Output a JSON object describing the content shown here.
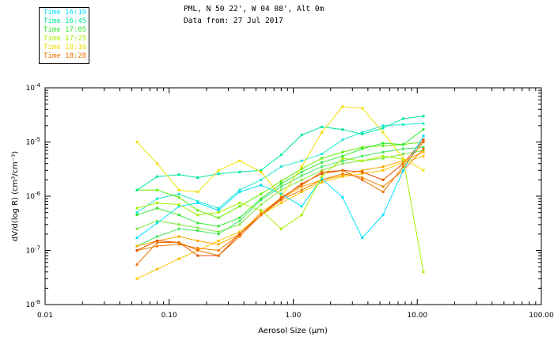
{
  "header": {
    "line1": "PML, N 50 22', W 04 08', Alt 0m",
    "line2": "Data from: 27 Jul 2017"
  },
  "chart_data": {
    "type": "line",
    "xscale": "log",
    "yscale": "log",
    "xlim": [
      0.01,
      100.0
    ],
    "ylim": [
      1e-08,
      0.0001
    ],
    "xlabel": "Aerosol Size (µm)",
    "ylabel": "dV/d(log R) (cm³/cm⁻³)",
    "xticks": [
      {
        "value": 0.01,
        "label": "0.01"
      },
      {
        "value": 0.1,
        "label": "0.10"
      },
      {
        "value": 1,
        "label": "1.00"
      },
      {
        "value": 10,
        "label": "10.00"
      },
      {
        "value": 100,
        "label": "100.00"
      }
    ],
    "yticks": [
      {
        "value": 1e-08,
        "base": "10",
        "exp": "-8"
      },
      {
        "value": 1e-07,
        "base": "10",
        "exp": "-7"
      },
      {
        "value": 1e-06,
        "base": "10",
        "exp": "-6"
      },
      {
        "value": 1e-05,
        "base": "10",
        "exp": "-5"
      },
      {
        "value": 0.0001,
        "base": "10",
        "exp": "-4"
      }
    ],
    "x": [
      0.055,
      0.08,
      0.12,
      0.17,
      0.25,
      0.37,
      0.55,
      0.8,
      1.17,
      1.7,
      2.5,
      3.6,
      5.3,
      7.7,
      11.2
    ],
    "series": [
      {
        "name": "Time 16:19",
        "color": "#00e0ff",
        "values": [
          1.7e-07,
          3.2e-07,
          6.5e-07,
          7.5e-07,
          5.5e-07,
          1.2e-06,
          1.6e-06,
          1.1e-06,
          6.5e-07,
          2.1e-06,
          9.5e-07,
          1.7e-07,
          4.5e-07,
          3e-06,
          1.3e-05
        ]
      },
      {
        "name": "Time 16:45",
        "color": "#00e8a0",
        "values": [
          1.3e-06,
          2.3e-06,
          2.5e-06,
          2.2e-06,
          2.6e-06,
          2.8e-06,
          3e-06,
          5.8e-06,
          1.35e-05,
          1.9e-05,
          1.7e-05,
          1.4e-05,
          1.8e-05,
          2.7e-05,
          3e-05
        ]
      },
      {
        "name": "Time 17:05",
        "color": "#30e830",
        "values": [
          4.5e-07,
          6e-07,
          4.5e-07,
          3.2e-07,
          2.8e-07,
          4e-07,
          9e-07,
          1.7e-06,
          2.8e-06,
          4.2e-06,
          5.5e-06,
          7.5e-06,
          9.5e-06,
          9e-06,
          1.7e-05
        ]
      },
      {
        "name": "Time 17:25",
        "color": "#a8f000",
        "values": [
          6e-07,
          7.5e-07,
          7e-07,
          4.5e-07,
          5e-07,
          7.5e-07,
          5.5e-07,
          2.5e-07,
          4.5e-07,
          2.3e-06,
          5e-06,
          4.5e-06,
          5.5e-06,
          4.8e-06,
          4e-08
        ]
      },
      {
        "name": "Time 18:16",
        "color": "#f0e000",
        "values": [
          1e-05,
          4e-06,
          1.3e-06,
          1.2e-06,
          3e-06,
          4.5e-06,
          2.8e-06,
          1e-06,
          3.5e-06,
          1.5e-05,
          4.5e-05,
          4.2e-05,
          1.5e-05,
          5e-06,
          3e-06
        ]
      },
      {
        "name": "Time 18:28",
        "color": "#f07000",
        "values": [
          5.5e-08,
          1.4e-07,
          1.4e-07,
          1e-07,
          8e-08,
          1.8e-07,
          4.5e-07,
          9.5e-07,
          1.6e-06,
          2.8e-06,
          3e-06,
          2e-06,
          1.2e-06,
          3.5e-06,
          1e-05
        ]
      }
    ],
    "extra_series": [
      {
        "color": "#20e8d0",
        "values": [
          5e-07,
          9e-07,
          1.1e-06,
          8e-07,
          6e-07,
          1.3e-06,
          2e-06,
          3.5e-06,
          4.5e-06,
          6e-06,
          1.1e-05,
          1.5e-05,
          2e-05,
          2.1e-05,
          2.2e-05
        ]
      },
      {
        "color": "#60f000",
        "values": [
          1.3e-06,
          1.3e-06,
          9.5e-07,
          5.5e-07,
          4e-07,
          6.5e-07,
          1.1e-06,
          1.9e-06,
          3.2e-06,
          5e-06,
          6.5e-06,
          8e-06,
          8.5e-06,
          9e-06,
          1e-05
        ]
      },
      {
        "color": "#40e860",
        "values": [
          1.2e-07,
          1.8e-07,
          2.5e-07,
          2.3e-07,
          2e-07,
          3.5e-07,
          8.5e-07,
          1.5e-06,
          2.4e-06,
          3.5e-06,
          4.5e-06,
          5.5e-06,
          6.5e-06,
          7.5e-06,
          8e-06
        ]
      },
      {
        "color": "#80e840",
        "values": [
          2.5e-07,
          3.5e-07,
          3e-07,
          2.6e-07,
          2.2e-07,
          3e-07,
          7e-07,
          1.3e-06,
          2e-06,
          3e-06,
          4e-06,
          4.5e-06,
          5e-06,
          6e-06,
          7e-06
        ]
      },
      {
        "color": "#ffc000",
        "values": [
          3e-08,
          4.5e-08,
          7e-08,
          1e-07,
          1.5e-07,
          2.2e-07,
          4.5e-07,
          7.5e-07,
          1.2e-06,
          1.8e-06,
          2.3e-06,
          2.6e-06,
          3e-06,
          4.2e-06,
          5.5e-06
        ]
      },
      {
        "color": "#ffa800",
        "values": [
          1.2e-07,
          1.5e-07,
          1.8e-07,
          1.5e-07,
          1.3e-07,
          2e-07,
          5e-07,
          9e-07,
          1.5e-06,
          2e-06,
          2.4e-06,
          3e-06,
          3.5e-06,
          4.5e-06,
          6.5e-06
        ]
      },
      {
        "color": "#f08000",
        "values": [
          1e-07,
          1.2e-07,
          1.3e-07,
          1.1e-07,
          1e-07,
          2e-07,
          4.5e-07,
          8.5e-07,
          1.3e-06,
          2e-06,
          2.6e-06,
          2.2e-06,
          1.5e-06,
          3e-06,
          7.5e-06
        ]
      },
      {
        "color": "#e85000",
        "values": [
          1e-07,
          1.5e-07,
          1.4e-07,
          8e-08,
          8e-08,
          2e-07,
          4.5e-07,
          9e-07,
          1.7e-06,
          2.6e-06,
          3e-06,
          2.8e-06,
          2e-06,
          4e-06,
          1.1e-05
        ]
      }
    ]
  }
}
